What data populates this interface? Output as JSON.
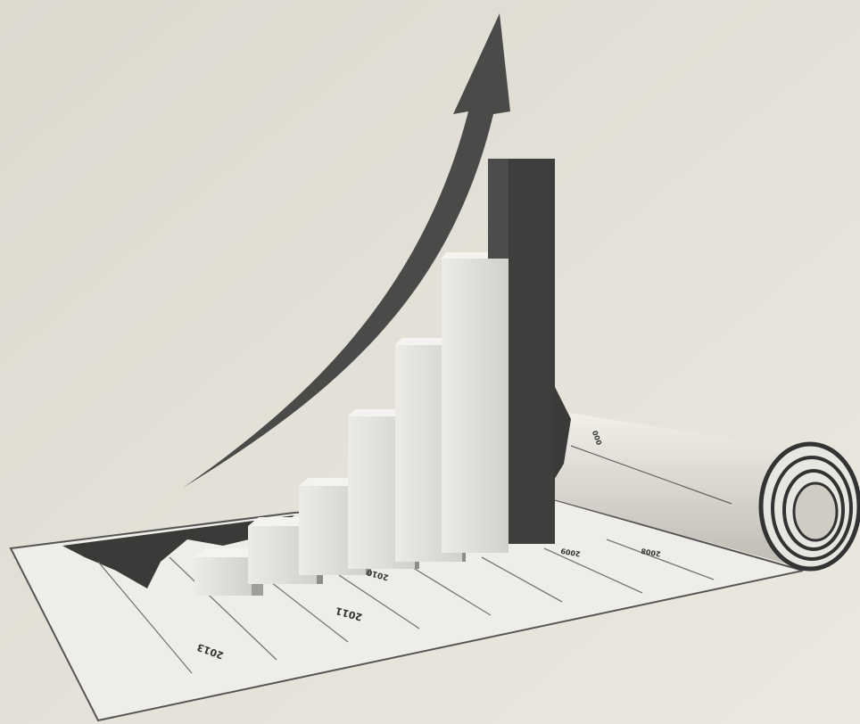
{
  "image": {
    "floor_labels": [
      "2013",
      "2011",
      "2010",
      "2009",
      "2008",
      "000"
    ]
  }
}
